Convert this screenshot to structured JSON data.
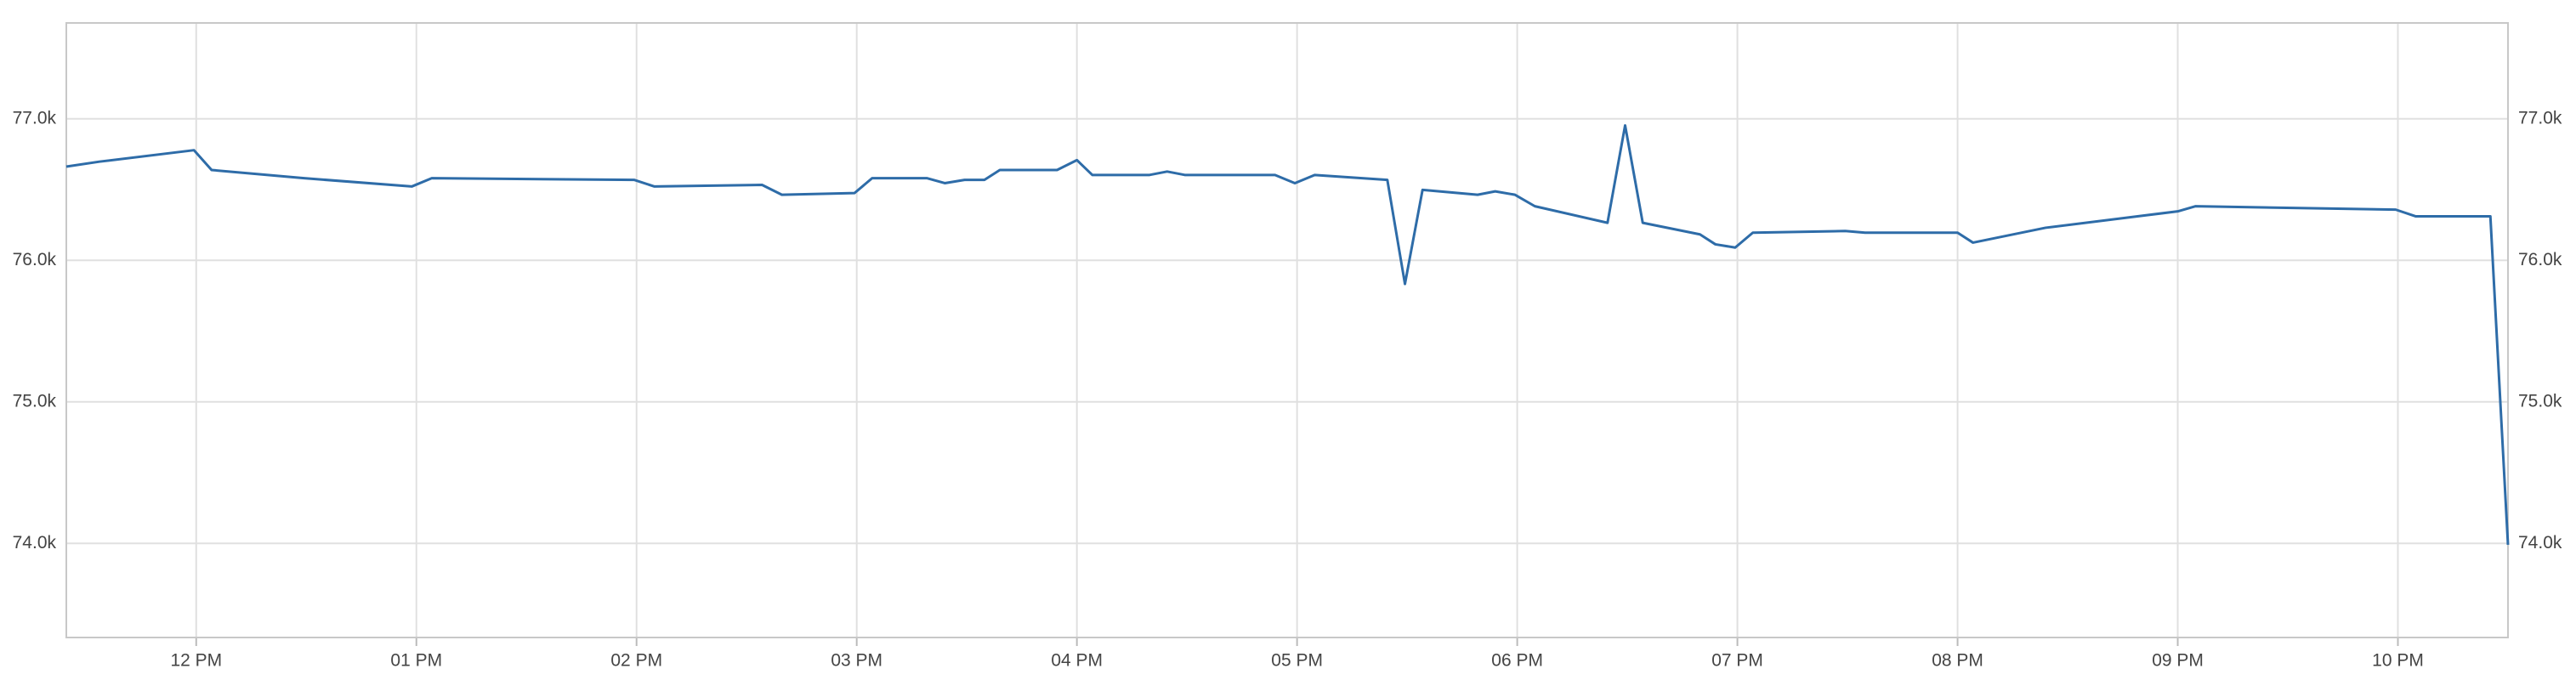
{
  "chart_data": {
    "type": "line",
    "x": [
      11.41,
      11.56,
      11.99,
      12.07,
      12.49,
      12.98,
      13.07,
      13.99,
      14.08,
      14.57,
      14.66,
      14.99,
      15.07,
      15.32,
      15.4,
      15.49,
      15.58,
      15.65,
      15.91,
      16.0,
      16.07,
      16.33,
      16.41,
      16.49,
      16.9,
      16.99,
      17.08,
      17.41,
      17.49,
      17.57,
      17.82,
      17.9,
      17.99,
      18.08,
      18.41,
      18.49,
      18.57,
      18.83,
      18.9,
      18.99,
      19.07,
      19.49,
      19.58,
      20.0,
      20.07,
      20.4,
      21.0,
      21.08,
      21.99,
      22.08,
      22.42,
      22.5
    ],
    "series": [
      {
        "color": "#2e6ca8",
        "values": [
          76662,
          76697,
          76778,
          76638,
          76580,
          76522,
          76580,
          76568,
          76522,
          76533,
          76463,
          76475,
          76580,
          76580,
          76545,
          76568,
          76568,
          76638,
          76638,
          76708,
          76603,
          76603,
          76627,
          76603,
          76603,
          76545,
          76603,
          76568,
          75833,
          76498,
          76463,
          76487,
          76463,
          76382,
          76265,
          76953,
          76265,
          76183,
          76113,
          76090,
          76195,
          76207,
          76195,
          76195,
          76125,
          76230,
          76346,
          76382,
          76358,
          76311,
          76311,
          73990
        ]
      }
    ],
    "xlim": [
      11.41,
      22.5
    ],
    "xticks": [
      {
        "value": 12,
        "label": "12 PM"
      },
      {
        "value": 13,
        "label": "01 PM"
      },
      {
        "value": 14,
        "label": "02 PM"
      },
      {
        "value": 15,
        "label": "03 PM"
      },
      {
        "value": 16,
        "label": "04 PM"
      },
      {
        "value": 17,
        "label": "05 PM"
      },
      {
        "value": 18,
        "label": "06 PM"
      },
      {
        "value": 19,
        "label": "07 PM"
      },
      {
        "value": 20,
        "label": "08 PM"
      },
      {
        "value": 21,
        "label": "09 PM"
      },
      {
        "value": 22,
        "label": "10 PM"
      }
    ],
    "ylim": [
      73335,
      77677
    ],
    "yticks": [
      {
        "value": 74000,
        "label": "74.0k"
      },
      {
        "value": 75000,
        "label": "75.0k"
      },
      {
        "value": 76000,
        "label": "76.0k"
      },
      {
        "value": 77000,
        "label": "77.0k"
      }
    ],
    "grid": true
  }
}
